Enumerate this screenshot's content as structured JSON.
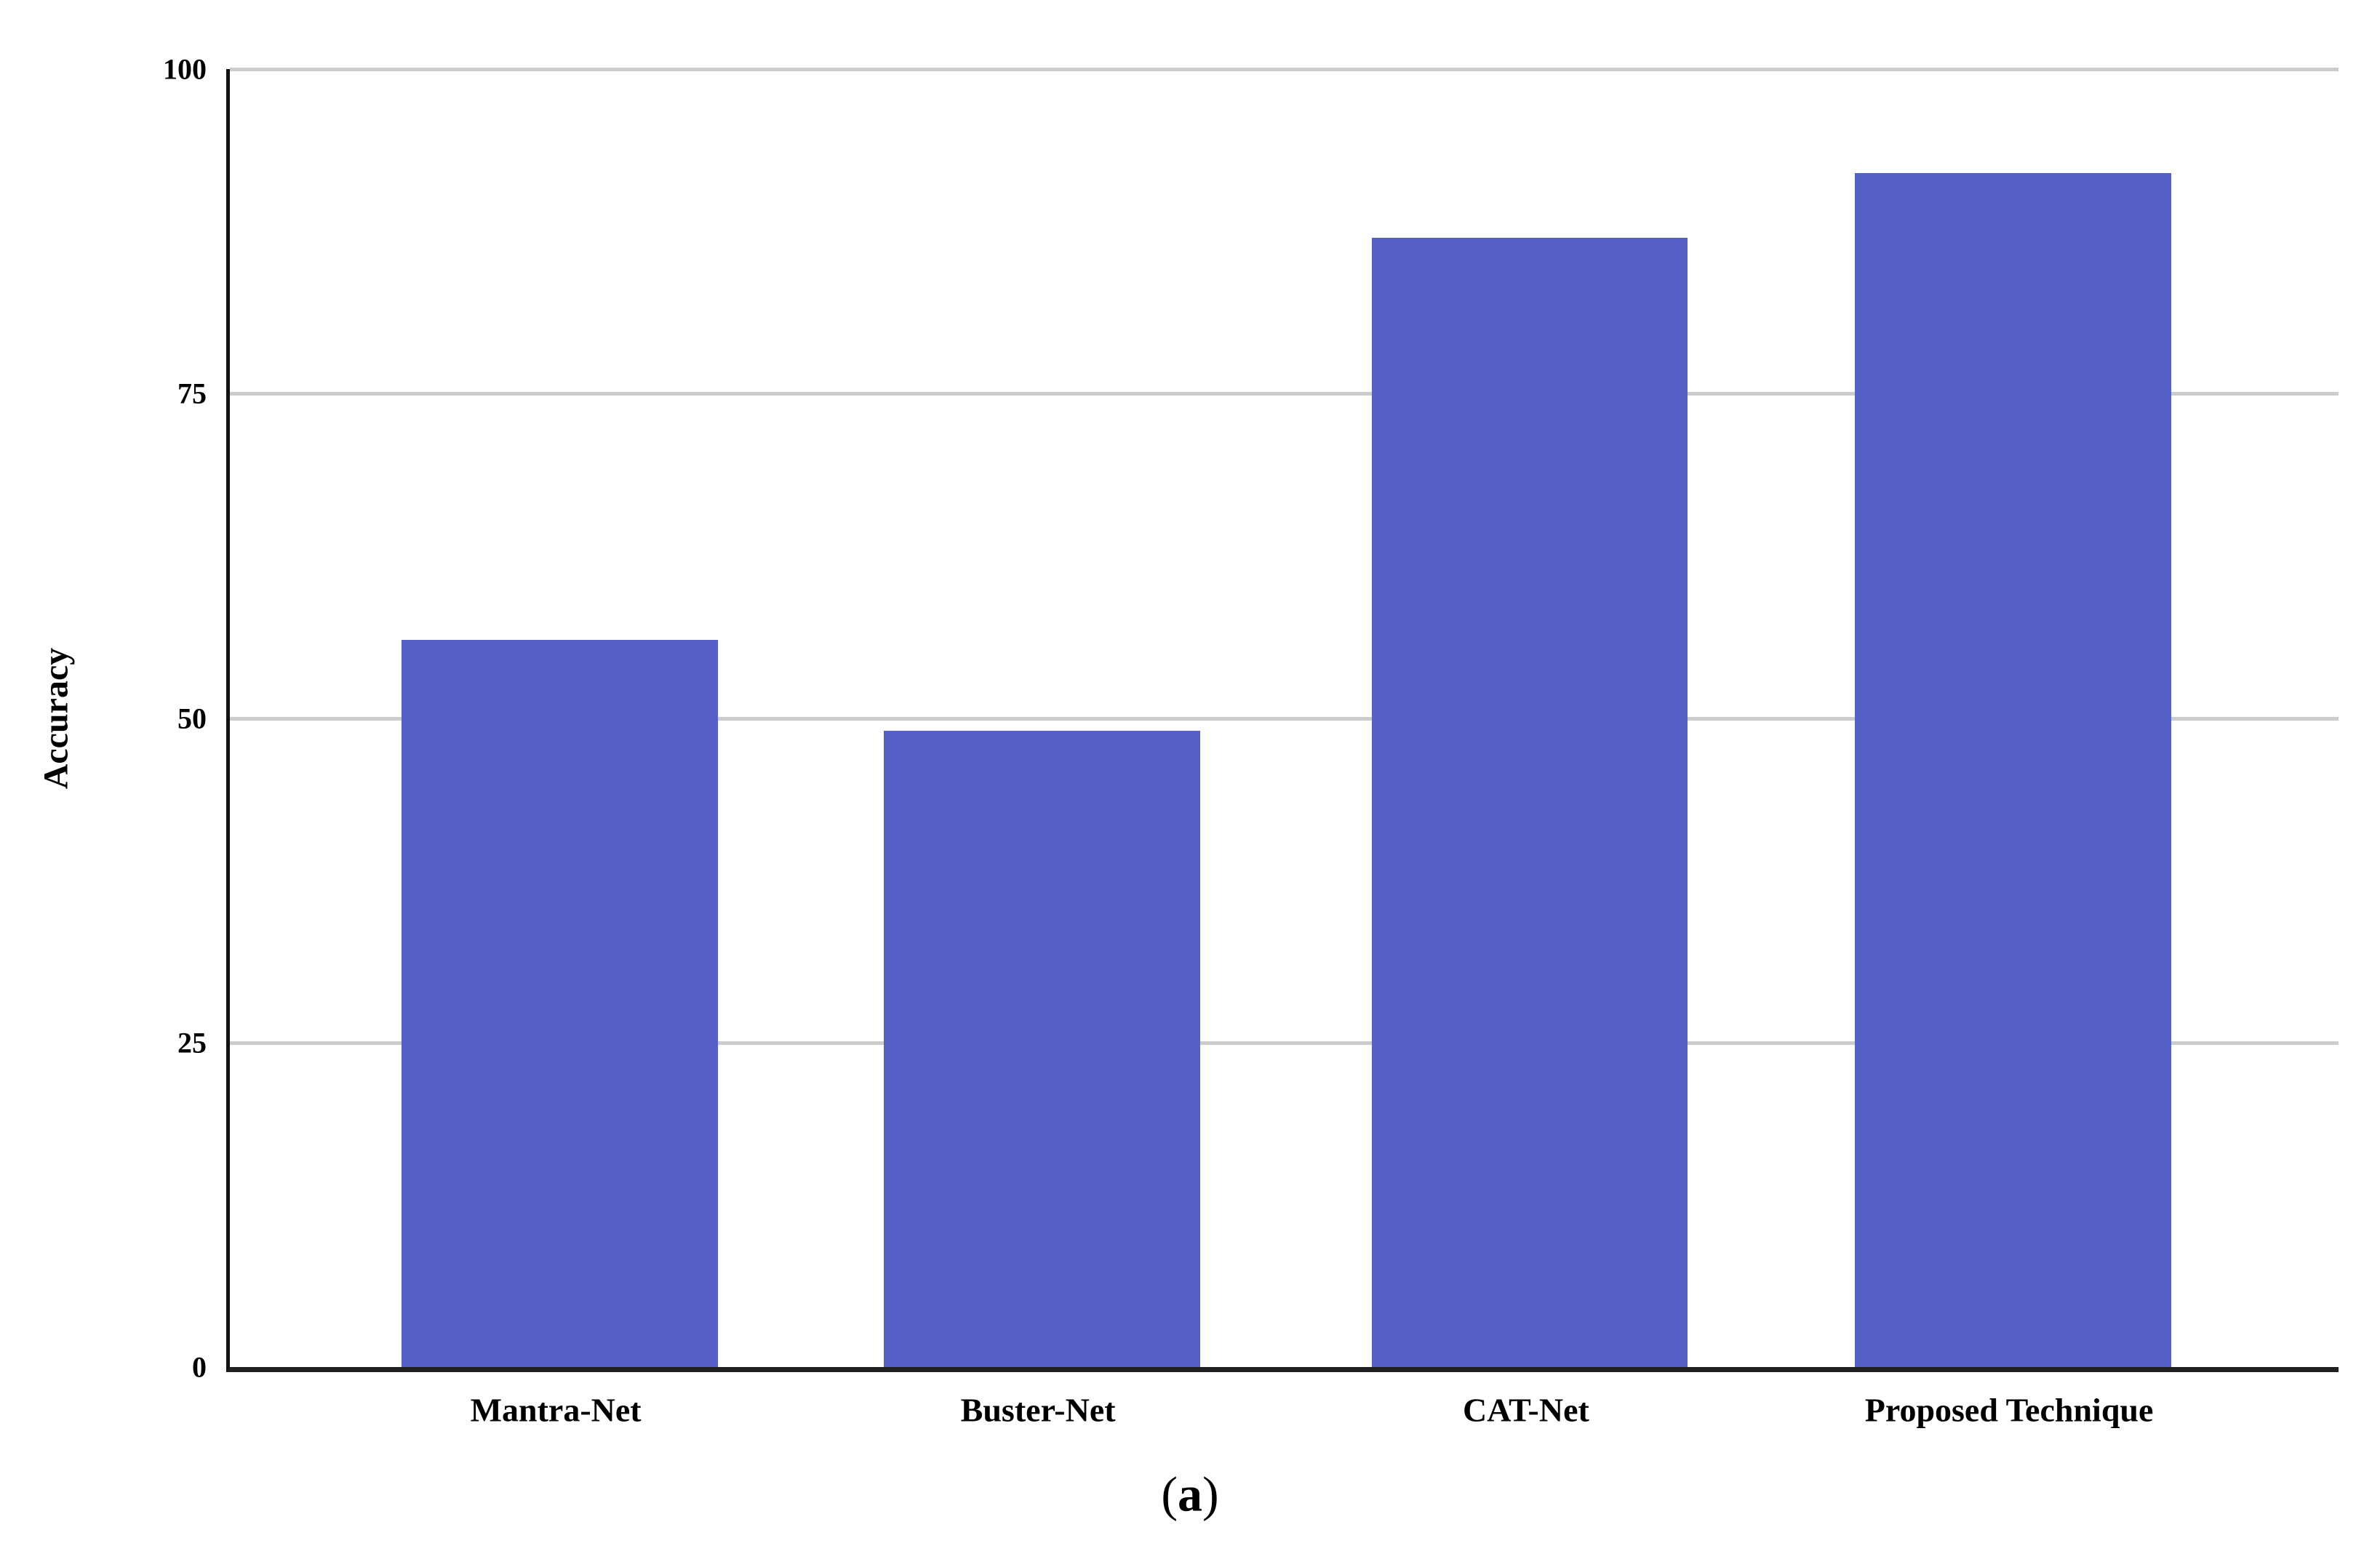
{
  "chart_data": {
    "type": "bar",
    "title": "",
    "categories": [
      "Mantra-Net",
      "Buster-Net",
      "CAT-Net",
      "Proposed Technique"
    ],
    "values": [
      56,
      49,
      87,
      92
    ],
    "xlabel": "",
    "ylabel": "Accuracy",
    "ylim": [
      0,
      100
    ],
    "yticks": [
      0,
      25,
      50,
      75,
      100
    ],
    "grid": "horizontal",
    "legend": "none",
    "bar_color": "#5560C6",
    "gridline_color": "#CCCCCC",
    "axis_color": "#212121"
  },
  "caption": {
    "open": "(",
    "letter": "a",
    "close": ")"
  }
}
